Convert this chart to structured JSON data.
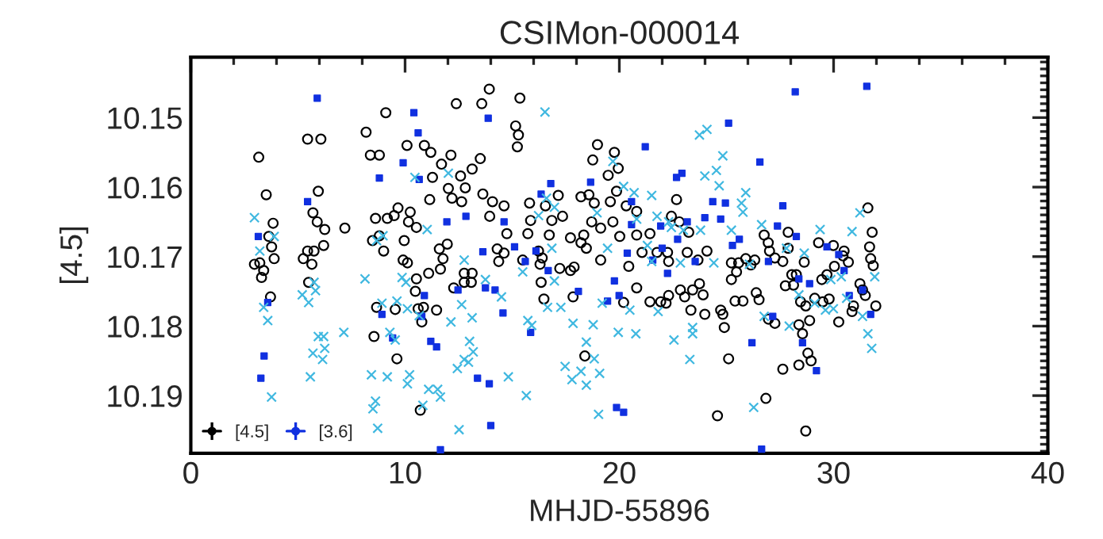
{
  "chart_data": {
    "type": "scatter",
    "title": "CSIMon-000014",
    "xlabel": "MHJD-55896",
    "ylabel": "[4.5]",
    "xlim": [
      0,
      40
    ],
    "xticks": [
      0,
      10,
      20,
      30,
      40
    ],
    "ylim": [
      10.1983,
      10.1413
    ],
    "yticks": [
      10.15,
      10.16,
      10.17,
      10.18,
      10.19
    ],
    "legend": "bottom left",
    "series": [
      {
        "name": "[4.5]",
        "color": "#000000",
        "marker": "circle",
        "x": [
          3.17,
          3.52,
          3.84,
          3.64,
          3.77,
          3.89,
          2.97,
          3.22,
          3.4,
          3.3,
          3.72,
          5.45,
          6.07,
          5.95,
          5.7,
          5.9,
          6.25,
          5.45,
          5.75,
          5.25,
          5.65,
          6.2,
          5.5,
          7.19,
          8.18,
          8.38,
          8.8,
          9.1,
          10.09,
          10.9,
          11.2,
          12.14,
          12.39,
          13.58,
          13.93,
          11.7,
          11.28,
          12.59,
          13.13,
          13.51,
          12.02,
          12.81,
          11.15,
          12.19,
          12.64,
          13.63,
          14.08,
          14.62,
          8.62,
          9.17,
          9.67,
          9.49,
          10.24,
          10.53,
          10.16,
          8.8,
          8.48,
          9.0,
          9.96,
          11.97,
          11.6,
          11.77,
          9.91,
          10.11,
          11.65,
          11.1,
          10.53,
          10.48,
          12.76,
          13.13,
          12.27,
          12.76,
          13.09,
          14.62,
          14.3,
          14.75,
          13.95,
          10.86,
          10.61,
          10.78,
          11.47,
          9.54,
          8.67,
          8.55,
          9.62,
          10.71,
          14.37,
          15.36,
          15.16,
          15.29,
          15.24,
          18.98,
          19.77,
          18.76,
          19.48,
          19.95,
          15.81,
          17.15,
          18.21,
          18.58,
          18.83,
          19.58,
          20.32,
          19.87,
          16.55,
          16.85,
          17.35,
          16.73,
          15.73,
          15.86,
          17.72,
          18.21,
          18.34,
          18.71,
          19.13,
          19.7,
          20.02,
          20.81,
          21.43,
          20.81,
          22.43,
          22.67,
          22.8,
          23.24,
          16.23,
          16.4,
          16.3,
          15.49,
          17.22,
          17.72,
          17.89,
          18.46,
          19.13,
          20.44,
          21.06,
          21.76,
          22.25,
          22.3,
          23.17,
          24.09,
          23.67,
          16.35,
          17.84,
          16.48,
          20.2,
          20.81,
          21.43,
          21.93,
          22.18,
          22.3,
          22.85,
          23.05,
          23.42,
          23.74,
          23.91,
          23.34,
          23.99,
          24.73,
          24.83,
          24.9,
          25.4,
          25.77,
          26.52,
          26.96,
          27.26,
          26.39,
          27.75,
          28.05,
          25.23,
          25.47,
          25.57,
          25.9,
          26.14,
          25.23,
          27.01,
          27.26,
          27.63,
          27.88,
          26.95,
          26.76,
          27.88,
          26.32,
          25.1,
          27.63,
          26.84,
          24.58,
          18.39,
          31.6,
          31.8,
          31.68,
          31.85,
          31.73,
          31.97,
          31.23,
          31.48,
          31.35,
          30.86,
          30.93,
          30.49,
          30.44,
          29.99,
          29.3,
          30.04,
          30.69,
          29.69,
          29.45,
          29.12,
          29.5,
          29.79,
          30.24,
          28.7,
          28.46,
          28.63,
          28.13,
          28.26,
          28.88,
          28.38,
          28.55,
          28.8,
          28.95,
          28.38,
          28.7
        ],
        "values": [
          10.1557,
          10.1611,
          10.1652,
          10.1671,
          10.1686,
          10.1703,
          10.1711,
          10.1709,
          10.172,
          10.173,
          10.1758,
          10.1531,
          10.1531,
          10.1606,
          10.1637,
          10.165,
          10.1661,
          10.1692,
          10.1692,
          10.1703,
          10.1711,
          10.1684,
          10.1737,
          10.1659,
          10.1521,
          10.1554,
          10.1554,
          10.1493,
          10.154,
          10.154,
          10.155,
          10.1554,
          10.148,
          10.148,
          10.1459,
          10.1567,
          10.1586,
          10.1584,
          10.1574,
          10.1559,
          10.1602,
          10.1601,
          10.1618,
          10.1616,
          10.1621,
          10.161,
          10.1621,
          10.1627,
          10.1645,
          10.1645,
          10.163,
          10.1641,
          10.1636,
          10.1658,
          10.165,
          10.167,
          10.1677,
          10.1692,
          10.1677,
          10.1682,
          10.1689,
          10.1703,
          10.1705,
          10.1709,
          10.1718,
          10.1724,
          10.1732,
          10.175,
          10.1724,
          10.1724,
          10.1745,
          10.1737,
          10.1737,
          10.1695,
          10.1689,
          10.1667,
          10.1642,
          10.1773,
          10.1775,
          10.1794,
          10.1777,
          10.1776,
          10.1773,
          10.1815,
          10.1847,
          10.1921,
          10.1707,
          10.1472,
          10.1512,
          10.1525,
          10.1542,
          10.1539,
          10.155,
          10.1561,
          10.1583,
          10.1573,
          10.1623,
          10.1612,
          10.1614,
          10.1611,
          10.1623,
          10.1621,
          10.1627,
          10.1606,
          10.1627,
          10.1648,
          10.1642,
          10.1669,
          10.1667,
          10.1648,
          10.1673,
          10.168,
          10.1669,
          10.165,
          10.1659,
          10.165,
          10.1671,
          10.1669,
          10.1667,
          10.1635,
          10.1642,
          10.1618,
          10.165,
          10.1665,
          10.1692,
          10.1702,
          10.1711,
          10.1705,
          10.1717,
          10.172,
          10.1715,
          10.1688,
          10.1705,
          10.1714,
          10.1694,
          10.1694,
          10.1694,
          10.1707,
          10.1694,
          10.1692,
          10.1705,
          10.1737,
          10.1758,
          10.1761,
          10.1766,
          10.1745,
          10.1765,
          10.1765,
          10.1767,
          10.1756,
          10.1748,
          10.1758,
          10.1748,
          10.1739,
          10.1755,
          10.1777,
          10.1783,
          10.1777,
          10.1783,
          10.1802,
          10.1764,
          10.1764,
          10.1762,
          10.179,
          10.1796,
          10.1752,
          10.1742,
          10.1726,
          10.1733,
          10.1722,
          10.1709,
          10.1703,
          10.1712,
          10.1709,
          10.1692,
          10.1702,
          10.1707,
          10.1688,
          10.168,
          10.1669,
          10.1665,
          10.1705,
          10.1847,
          10.1862,
          10.1904,
          10.1929,
          10.1843,
          10.163,
          10.1665,
          10.1686,
          10.1713,
          10.1703,
          10.1771,
          10.1739,
          10.1756,
          10.1748,
          10.1779,
          10.1771,
          10.1692,
          10.1699,
          10.1684,
          10.168,
          10.1714,
          10.1708,
          10.1726,
          10.1733,
          10.176,
          10.1765,
          10.1761,
          10.1794,
          10.1771,
          10.1765,
          10.1708,
          10.1741,
          10.1726,
          10.1792,
          10.1798,
          10.1811,
          10.1839,
          10.185,
          10.1856,
          10.1951
        ]
      },
      {
        "name": "[3.6]",
        "color": "#1030e0",
        "marker": "square",
        "x": [
          5.9,
          10.41,
          10.61,
          9.91,
          8.8,
          10.66,
          13.88,
          5.45,
          3.15,
          3.59,
          3.42,
          3.27,
          11.95,
          12.84,
          14.62,
          13.63,
          10.9,
          8.92,
          10.78,
          12.47,
          13.75,
          14.2,
          14.57,
          9.42,
          11.2,
          11.47,
          13.38,
          13.93,
          14.0,
          11.65,
          25.1,
          26.56,
          21.21,
          22.67,
          22.92,
          18.66,
          16.8,
          16.35,
          20.57,
          24.36,
          24.95,
          27.63,
          24.73,
          23.99,
          23.17,
          21.93,
          22.72,
          27.38,
          25.6,
          25.28,
          20.57,
          22.0,
          21.56,
          20.37,
          16.11,
          15.11,
          15.61,
          23.54,
          26.96,
          16.68,
          22.25,
          19.77,
          18.09,
          19.99,
          19.45,
          27.16,
          15.86,
          26.19,
          19.87,
          20.2,
          26.64,
          28.21,
          31.55,
          28.26,
          29.69,
          30.24,
          30.49,
          28.38,
          28.88,
          30.73,
          31.35,
          31.73,
          28.55,
          29.2
        ],
        "values": [
          10.1472,
          10.1493,
          10.1522,
          10.1565,
          10.1587,
          10.1589,
          10.1501,
          10.1621,
          10.1671,
          10.1766,
          10.1843,
          10.1875,
          10.165,
          10.1642,
          10.165,
          10.1693,
          10.1756,
          10.1783,
          10.1786,
          10.1748,
          10.1745,
          10.1748,
          10.1781,
          10.1817,
          10.1822,
          10.183,
          10.1875,
          10.1883,
          10.1943,
          10.1978,
          10.1508,
          10.1564,
          10.1542,
          10.1586,
          10.158,
          10.1593,
          10.1595,
          10.161,
          10.1621,
          10.1621,
          10.1623,
          10.1627,
          10.1646,
          10.1644,
          10.165,
          10.1656,
          10.1675,
          10.1656,
          10.1675,
          10.1684,
          10.1654,
          10.1688,
          10.1705,
          10.1695,
          10.1692,
          10.1686,
          10.1707,
          10.1707,
          10.1707,
          10.172,
          10.1724,
          10.1735,
          10.175,
          10.1756,
          10.1764,
          10.1786,
          10.1809,
          10.1824,
          10.1917,
          10.1924,
          10.1977,
          10.1463,
          10.1455,
          10.1671,
          10.1686,
          10.1697,
          10.172,
          10.1732,
          10.1739,
          10.1756,
          10.1748,
          10.1783,
          10.1824,
          10.1864
        ]
      },
      {
        "color": "#40b8e0",
        "marker": "cross",
        "x": [
          2.97,
          3.89,
          3.22,
          3.4,
          3.59,
          3.77,
          5.75,
          5.2,
          5.5,
          5.82,
          5.95,
          6.2,
          6.25,
          5.7,
          6.15,
          5.58,
          7.14,
          8.13,
          8.97,
          8.67,
          9.86,
          10.04,
          11.03,
          10.46,
          12.02,
          8.92,
          9.62,
          10.11,
          10.66,
          9.29,
          9.54,
          8.43,
          9.17,
          10.21,
          10.11,
          11.1,
          11.52,
          11.65,
          8.62,
          8.5,
          8.72,
          10.83,
          12.52,
          12.14,
          12.64,
          13.13,
          13.01,
          13.18,
          12.76,
          12.96,
          12.44,
          12.76,
          13.75,
          14.5,
          14.82,
          16.53,
          23.74,
          24.09,
          24.83,
          24.53,
          23.99,
          24.66,
          25.9,
          25.7,
          25.77,
          26.64,
          20.2,
          20.69,
          21.51,
          19.7,
          16.6,
          16.97,
          16.23,
          18.96,
          20.81,
          21.76,
          22.3,
          22.43,
          22.99,
          23.79,
          25.23,
          16.85,
          19.45,
          21.31,
          21.51,
          22.85,
          24.41,
          26.07,
          27.8,
          15.49,
          16.97,
          16.65,
          17.27,
          19.2,
          20.49,
          21.81,
          23.42,
          23.42,
          15.73,
          15.91,
          17.84,
          18.78,
          19.95,
          20.77,
          22.55,
          18.46,
          18.83,
          19.08,
          17.47,
          17.79,
          18.21,
          18.46,
          15.66,
          19.03,
          23.29,
          26.27,
          26.76,
          27.93,
          31.23,
          30.86,
          29.37,
          28.63,
          29.87,
          30.36,
          31.92,
          29.12,
          29.62,
          29.99,
          30.61,
          31.35,
          31.6,
          31.78,
          28.38
        ],
        "values": [
          10.1644,
          10.1671,
          10.1692,
          10.1773,
          10.1792,
          10.1902,
          10.1737,
          10.1755,
          10.1766,
          10.1749,
          10.1815,
          10.1815,
          10.1832,
          10.1839,
          10.1848,
          10.1873,
          10.1809,
          10.1732,
          10.167,
          10.1677,
          10.173,
          10.1737,
          10.1661,
          10.1586,
          10.158,
          10.1767,
          10.1764,
          10.1775,
          10.1785,
          10.1809,
          10.182,
          10.187,
          10.1873,
          10.187,
          10.1883,
          10.1891,
          10.1891,
          10.1902,
          10.1908,
          10.1919,
          10.1947,
          10.1914,
          10.1949,
          10.1794,
          10.1769,
          10.1788,
          10.1822,
          10.1837,
          10.1848,
          10.1852,
          10.1861,
          10.1705,
          10.1733,
          10.1758,
          10.1873,
          10.1492,
          10.1525,
          10.1517,
          10.1555,
          10.1576,
          10.1584,
          10.1598,
          10.1608,
          10.1623,
          10.1636,
          10.1654,
          10.1599,
          10.1608,
          10.1612,
          10.1563,
          10.1616,
          10.1629,
          10.1641,
          10.1637,
          10.1646,
          10.1642,
          10.165,
          10.1658,
          10.1662,
          10.1662,
          10.1662,
          10.1688,
          10.1688,
          10.1684,
          10.1707,
          10.1709,
          10.1709,
          10.1711,
          10.1688,
          10.1722,
          10.1735,
          10.1773,
          10.1773,
          10.1767,
          10.1777,
          10.1779,
          10.1802,
          10.1811,
          10.1792,
          10.1799,
          10.1796,
          10.1798,
          10.1809,
          10.1811,
          10.182,
          10.1823,
          10.1847,
          10.1868,
          10.1858,
          10.1877,
          10.1865,
          10.1885,
          10.19,
          10.1927,
          10.1848,
          10.1917,
          10.1786,
          10.18,
          10.1637,
          10.1664,
          10.1661,
          10.1695,
          10.1733,
          10.1729,
          10.1729,
          10.1767,
          10.1777,
          10.1775,
          10.176,
          10.1786,
          10.1811,
          10.1832,
          10.1755
        ]
      }
    ]
  }
}
